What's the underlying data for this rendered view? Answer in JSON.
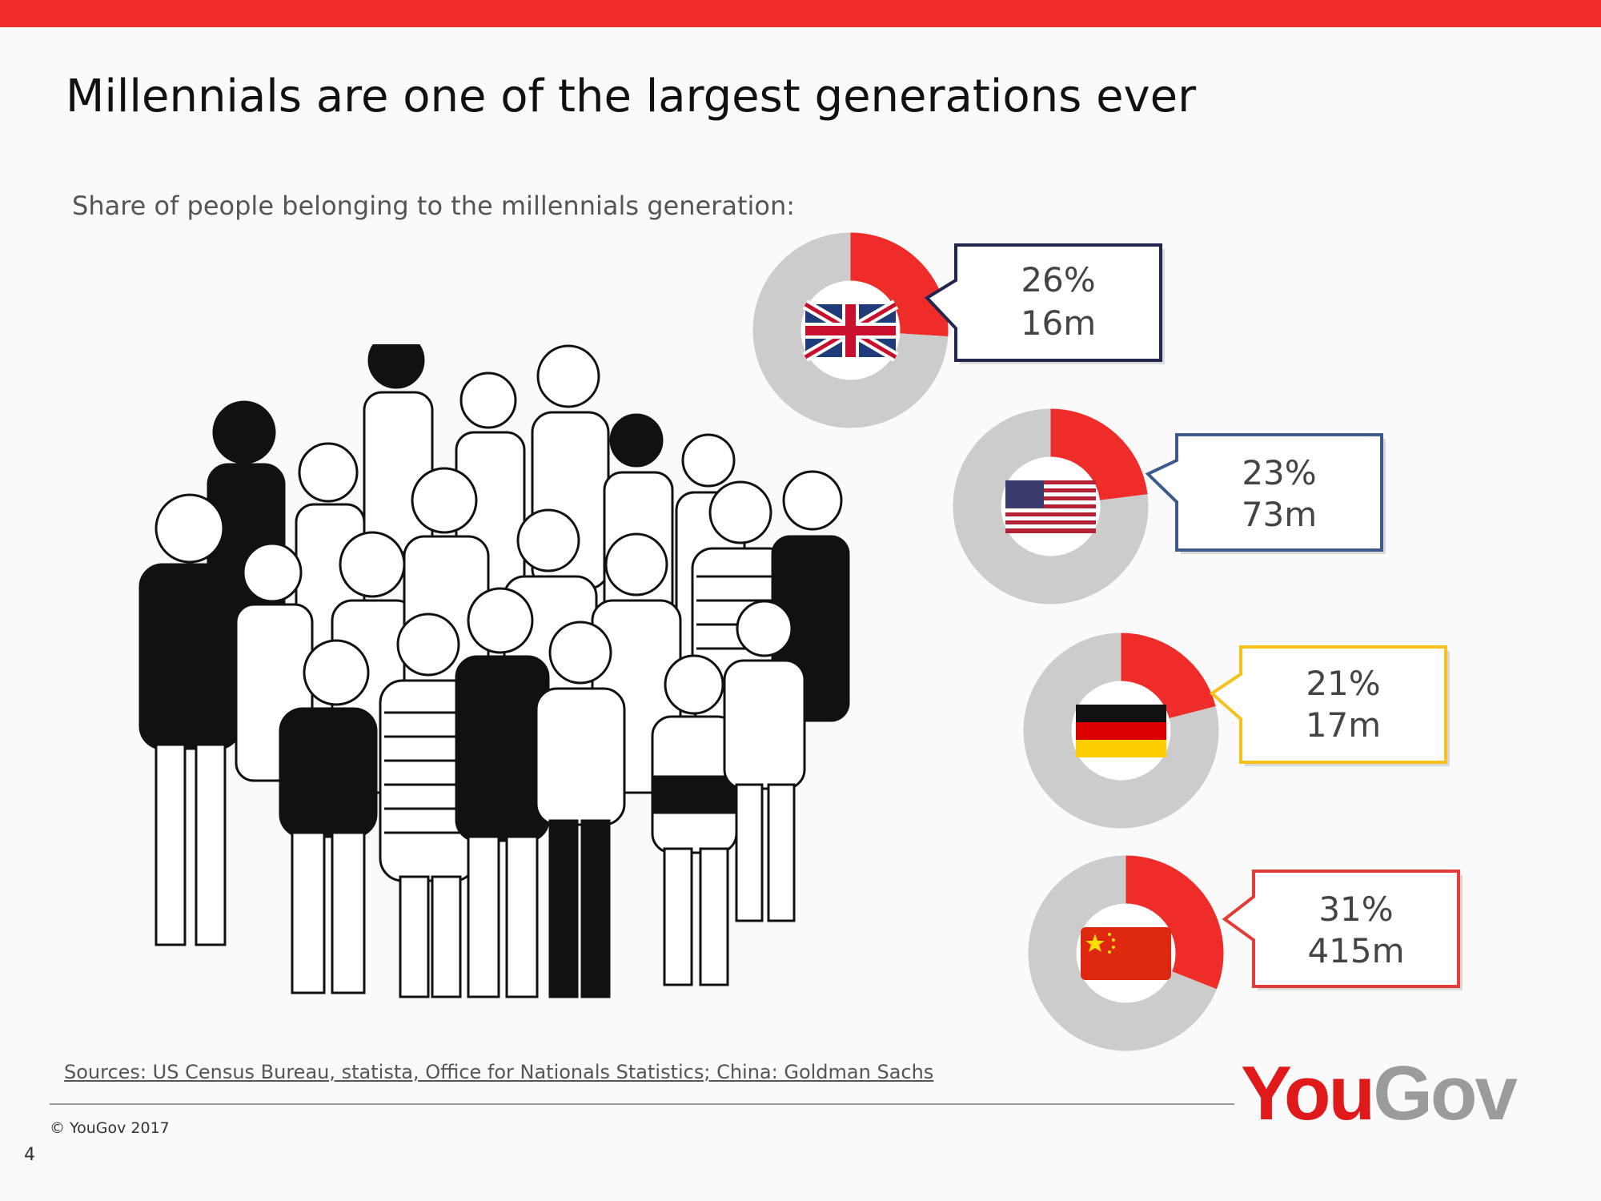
{
  "slide": {
    "title": "Millennials are one of the largest generations ever",
    "subtitle": "Share of people belonging to the millennials generation:",
    "sources": "Sources: US Census Bureau, statista, Office for Nationals Statistics; China: Goldman Sachs",
    "copyright": "©  YouGov 2017",
    "page_number": "4",
    "logo": {
      "part1": "You",
      "part2": "Gov"
    }
  },
  "colors": {
    "accent": "#ee2d2a",
    "donut_rest": "#cccccc",
    "uk_border": "#22264f",
    "us_border": "#3c5a8c",
    "de_border": "#f4c21b",
    "cn_border": "#e53a35"
  },
  "chart_data": [
    {
      "type": "pie",
      "country": "UK",
      "flag_icon": "uk-flag-icon",
      "values": [
        26,
        74
      ],
      "share_label": "26%",
      "population_label": "16m"
    },
    {
      "type": "pie",
      "country": "US",
      "flag_icon": "us-flag-icon",
      "values": [
        23,
        77
      ],
      "share_label": "23%",
      "population_label": "73m"
    },
    {
      "type": "pie",
      "country": "Germany",
      "flag_icon": "germany-flag-icon",
      "values": [
        21,
        79
      ],
      "share_label": "21%",
      "population_label": "17m"
    },
    {
      "type": "pie",
      "country": "China",
      "flag_icon": "china-flag-icon",
      "values": [
        31,
        69
      ],
      "share_label": "31%",
      "population_label": "415m"
    }
  ]
}
